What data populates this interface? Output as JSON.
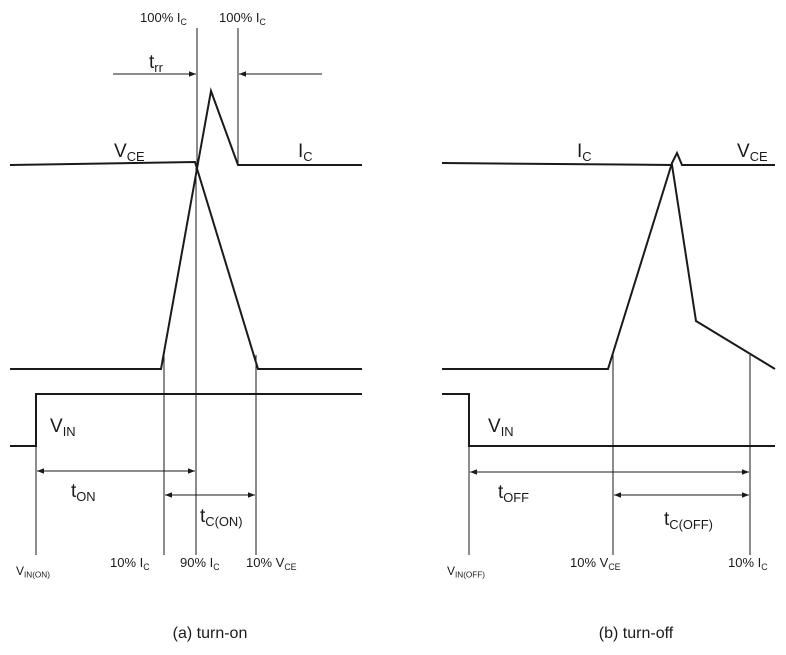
{
  "turn_on": {
    "caption": "(a) turn-on",
    "labels": {
      "ic_top_left": "100% IC",
      "ic_top_right": "100% IC",
      "trr": "trr",
      "vce": "VCE",
      "ic": "IC",
      "vin": "VIN",
      "ton": "tON",
      "tc_on": "tC(ON)",
      "vin_on": "VIN(ON)",
      "ic_10": "10% IC",
      "ic_90": "90% IC",
      "vce_10": "10% VCE"
    }
  },
  "turn_off": {
    "caption": "(b) turn-off",
    "labels": {
      "ic": "IC",
      "vce": "VCE",
      "vin": "VIN",
      "toff": "tOFF",
      "tc_off": "tC(OFF)",
      "vin_off": "VIN(OFF)",
      "vce_10": "10% VCE",
      "ic_10": "10% IC"
    }
  }
}
